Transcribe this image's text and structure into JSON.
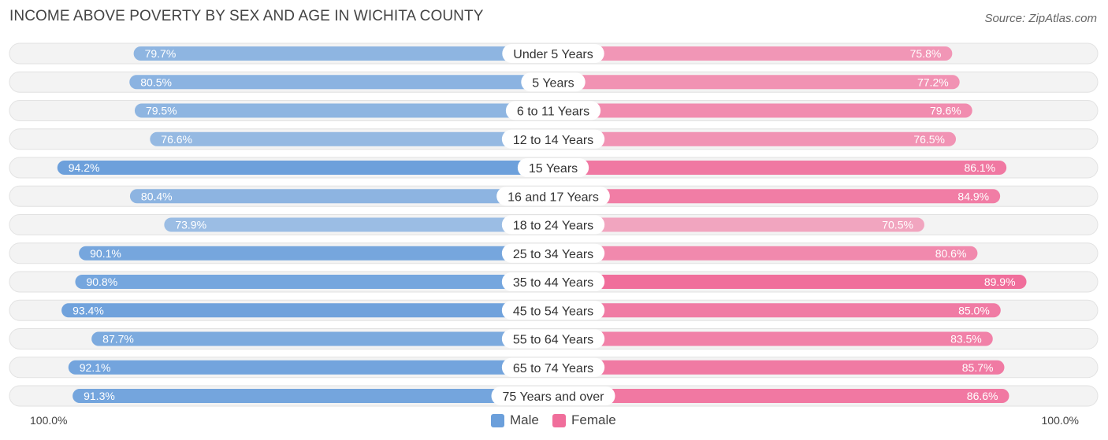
{
  "title": "INCOME ABOVE POVERTY BY SEX AND AGE IN WICHITA COUNTY",
  "source": "Source: ZipAtlas.com",
  "axis": {
    "left_label": "100.0%",
    "right_label": "100.0%"
  },
  "legend": [
    {
      "label": "Male",
      "color": "#6b9fdb"
    },
    {
      "label": "Female",
      "color": "#f06e9b"
    }
  ],
  "chart_data": {
    "type": "bar",
    "orientation": "diverging-horizontal",
    "title": "INCOME ABOVE POVERTY BY SEX AND AGE IN WICHITA COUNTY",
    "xlim": [
      0,
      100
    ],
    "categories": [
      "Under 5 Years",
      "5 Years",
      "6 to 11 Years",
      "12 to 14 Years",
      "15 Years",
      "16 and 17 Years",
      "18 to 24 Years",
      "25 to 34 Years",
      "35 to 44 Years",
      "45 to 54 Years",
      "55 to 64 Years",
      "65 to 74 Years",
      "75 Years and over"
    ],
    "series": [
      {
        "name": "Male",
        "values": [
          79.7,
          80.5,
          79.5,
          76.6,
          94.2,
          80.4,
          73.9,
          90.1,
          90.8,
          93.4,
          87.7,
          92.1,
          91.3
        ],
        "labels": [
          "79.7%",
          "80.5%",
          "79.5%",
          "76.6%",
          "94.2%",
          "80.4%",
          "73.9%",
          "90.1%",
          "90.8%",
          "93.4%",
          "87.7%",
          "92.1%",
          "91.3%"
        ]
      },
      {
        "name": "Female",
        "values": [
          75.8,
          77.2,
          79.6,
          76.5,
          86.1,
          84.9,
          70.5,
          80.6,
          89.9,
          85.0,
          83.5,
          85.7,
          86.6
        ],
        "labels": [
          "75.8%",
          "77.2%",
          "79.6%",
          "76.5%",
          "86.1%",
          "84.9%",
          "70.5%",
          "80.6%",
          "89.9%",
          "85.0%",
          "83.5%",
          "85.7%",
          "86.6%"
        ]
      }
    ]
  }
}
